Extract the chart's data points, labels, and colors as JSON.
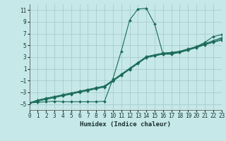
{
  "xlabel": "Humidex (Indice chaleur)",
  "background_color": "#c6e8e8",
  "grid_color": "#a8cccc",
  "line_color": "#1a6b5a",
  "xlim": [
    0,
    23
  ],
  "ylim": [
    -6,
    12
  ],
  "xticks": [
    0,
    1,
    2,
    3,
    4,
    5,
    6,
    7,
    8,
    9,
    10,
    11,
    12,
    13,
    14,
    15,
    16,
    17,
    18,
    19,
    20,
    21,
    22,
    23
  ],
  "yticks": [
    -5,
    -3,
    -1,
    1,
    3,
    5,
    7,
    9,
    11
  ],
  "series": [
    {
      "x": [
        0,
        1,
        2,
        3,
        4,
        5,
        6,
        7,
        8,
        9,
        10,
        11,
        12,
        13,
        14,
        15,
        16,
        17,
        18,
        19,
        20,
        21,
        22,
        23
      ],
      "y": [
        -4.8,
        -4.7,
        -4.6,
        -4.5,
        -4.6,
        -4.6,
        -4.6,
        -4.6,
        -4.6,
        -4.5,
        -0.7,
        4.0,
        9.3,
        11.2,
        11.3,
        8.6,
        3.5,
        3.5,
        3.8,
        4.2,
        4.8,
        5.5,
        6.5,
        6.8
      ]
    },
    {
      "x": [
        0,
        1,
        2,
        3,
        4,
        5,
        6,
        7,
        8,
        9,
        10,
        11,
        12,
        13,
        14,
        15,
        16,
        17,
        18,
        19,
        20,
        21,
        22,
        23
      ],
      "y": [
        -4.8,
        -4.3,
        -4.0,
        -3.7,
        -3.4,
        -3.1,
        -2.8,
        -2.5,
        -2.2,
        -1.9,
        -0.9,
        0.1,
        1.1,
        2.1,
        3.1,
        3.4,
        3.7,
        3.8,
        4.0,
        4.4,
        4.8,
        5.3,
        5.8,
        6.3
      ]
    },
    {
      "x": [
        0,
        1,
        2,
        3,
        4,
        5,
        6,
        7,
        8,
        9,
        10,
        11,
        12,
        13,
        14,
        15,
        16,
        17,
        18,
        19,
        20,
        21,
        22,
        23
      ],
      "y": [
        -4.8,
        -4.4,
        -4.1,
        -3.8,
        -3.5,
        -3.2,
        -2.9,
        -2.6,
        -2.3,
        -2.0,
        -1.0,
        0.0,
        1.0,
        2.0,
        3.0,
        3.3,
        3.6,
        3.7,
        3.9,
        4.3,
        4.7,
        5.2,
        5.6,
        6.1
      ]
    },
    {
      "x": [
        0,
        1,
        2,
        3,
        4,
        5,
        6,
        7,
        8,
        9,
        10,
        11,
        12,
        13,
        14,
        15,
        16,
        17,
        18,
        19,
        20,
        21,
        22,
        23
      ],
      "y": [
        -4.8,
        -4.5,
        -4.2,
        -3.9,
        -3.6,
        -3.3,
        -3.0,
        -2.7,
        -2.4,
        -2.1,
        -1.1,
        -0.1,
        0.9,
        1.9,
        2.9,
        3.2,
        3.5,
        3.6,
        3.8,
        4.2,
        4.6,
        5.1,
        5.5,
        5.9
      ]
    }
  ]
}
